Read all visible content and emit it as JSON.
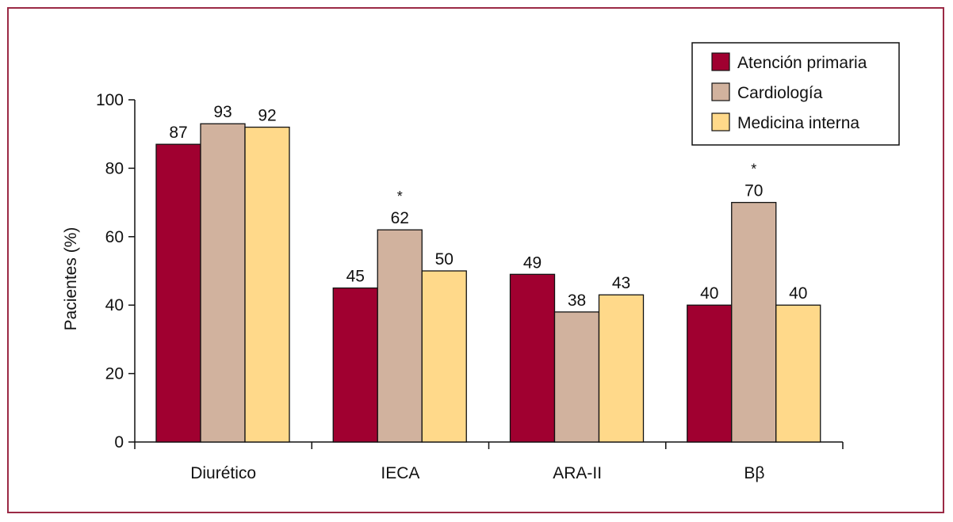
{
  "chart_data": {
    "type": "bar",
    "categories": [
      "Diurético",
      "IECA",
      "ARA-II",
      "Bβ"
    ],
    "series": [
      {
        "name": "Atención primaria",
        "values": [
          87,
          45,
          49,
          40
        ],
        "color": "#a00030"
      },
      {
        "name": "Cardiología",
        "values": [
          93,
          62,
          38,
          70
        ],
        "color": "#d1b29e"
      },
      {
        "name": "Medicina interna",
        "values": [
          92,
          50,
          43,
          40
        ],
        "color": "#ffd98a"
      }
    ],
    "annotations": [
      {
        "category": "IECA",
        "series": "Cardiología",
        "text": "*"
      },
      {
        "category": "Bβ",
        "series": "Cardiología",
        "text": "*"
      }
    ],
    "ylabel": "Pacientes (%)",
    "xlabel": "",
    "title": "",
    "ylim": [
      0,
      100
    ],
    "yticks": [
      0,
      20,
      40,
      60,
      80,
      100
    ],
    "legend_position": "top-right",
    "grid": false,
    "frame_color": "#9b2a45"
  }
}
